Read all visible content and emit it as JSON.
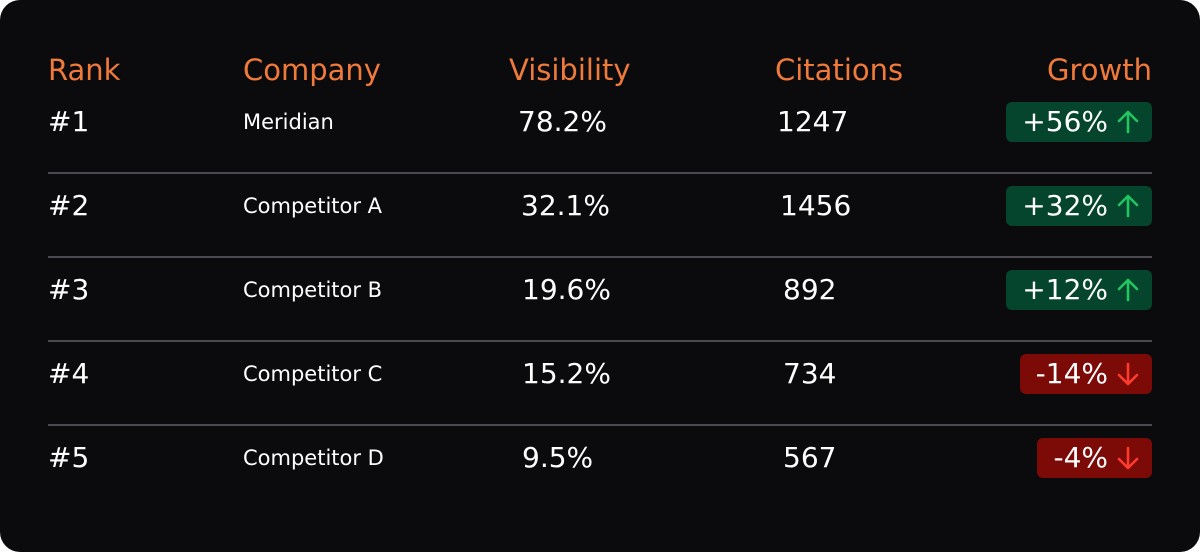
{
  "headers": {
    "rank": "Rank",
    "company": "Company",
    "visibility": "Visibility",
    "citations": "Citations",
    "growth": "Growth"
  },
  "colors": {
    "background": "#0b0b0e",
    "header": "#f07a3a",
    "text": "#ffffff",
    "divider": "#4a4a50",
    "up_badge_bg": "#05452e",
    "up_arrow": "#22c55e",
    "down_badge_bg": "#7c0a07",
    "down_arrow": "#ff3b2f"
  },
  "rows": [
    {
      "rank": "#1",
      "company": "Meridian",
      "visibility": "78.2%",
      "citations": "1247",
      "growth": "+56%",
      "trend": "up",
      "trend_icon": "arrow-up-icon"
    },
    {
      "rank": "#2",
      "company": "Competitor A",
      "visibility": "32.1%",
      "citations": "1456",
      "growth": "+32%",
      "trend": "up",
      "trend_icon": "arrow-up-icon"
    },
    {
      "rank": "#3",
      "company": "Competitor B",
      "visibility": "19.6%",
      "citations": "892",
      "growth": "+12%",
      "trend": "up",
      "trend_icon": "arrow-up-icon"
    },
    {
      "rank": "#4",
      "company": "Competitor C",
      "visibility": "15.2%",
      "citations": "734",
      "growth": "-14%",
      "trend": "down",
      "trend_icon": "arrow-down-icon"
    },
    {
      "rank": "#5",
      "company": "Competitor D",
      "visibility": "9.5%",
      "citations": "567",
      "growth": "-4%",
      "trend": "down",
      "trend_icon": "arrow-down-icon"
    }
  ]
}
